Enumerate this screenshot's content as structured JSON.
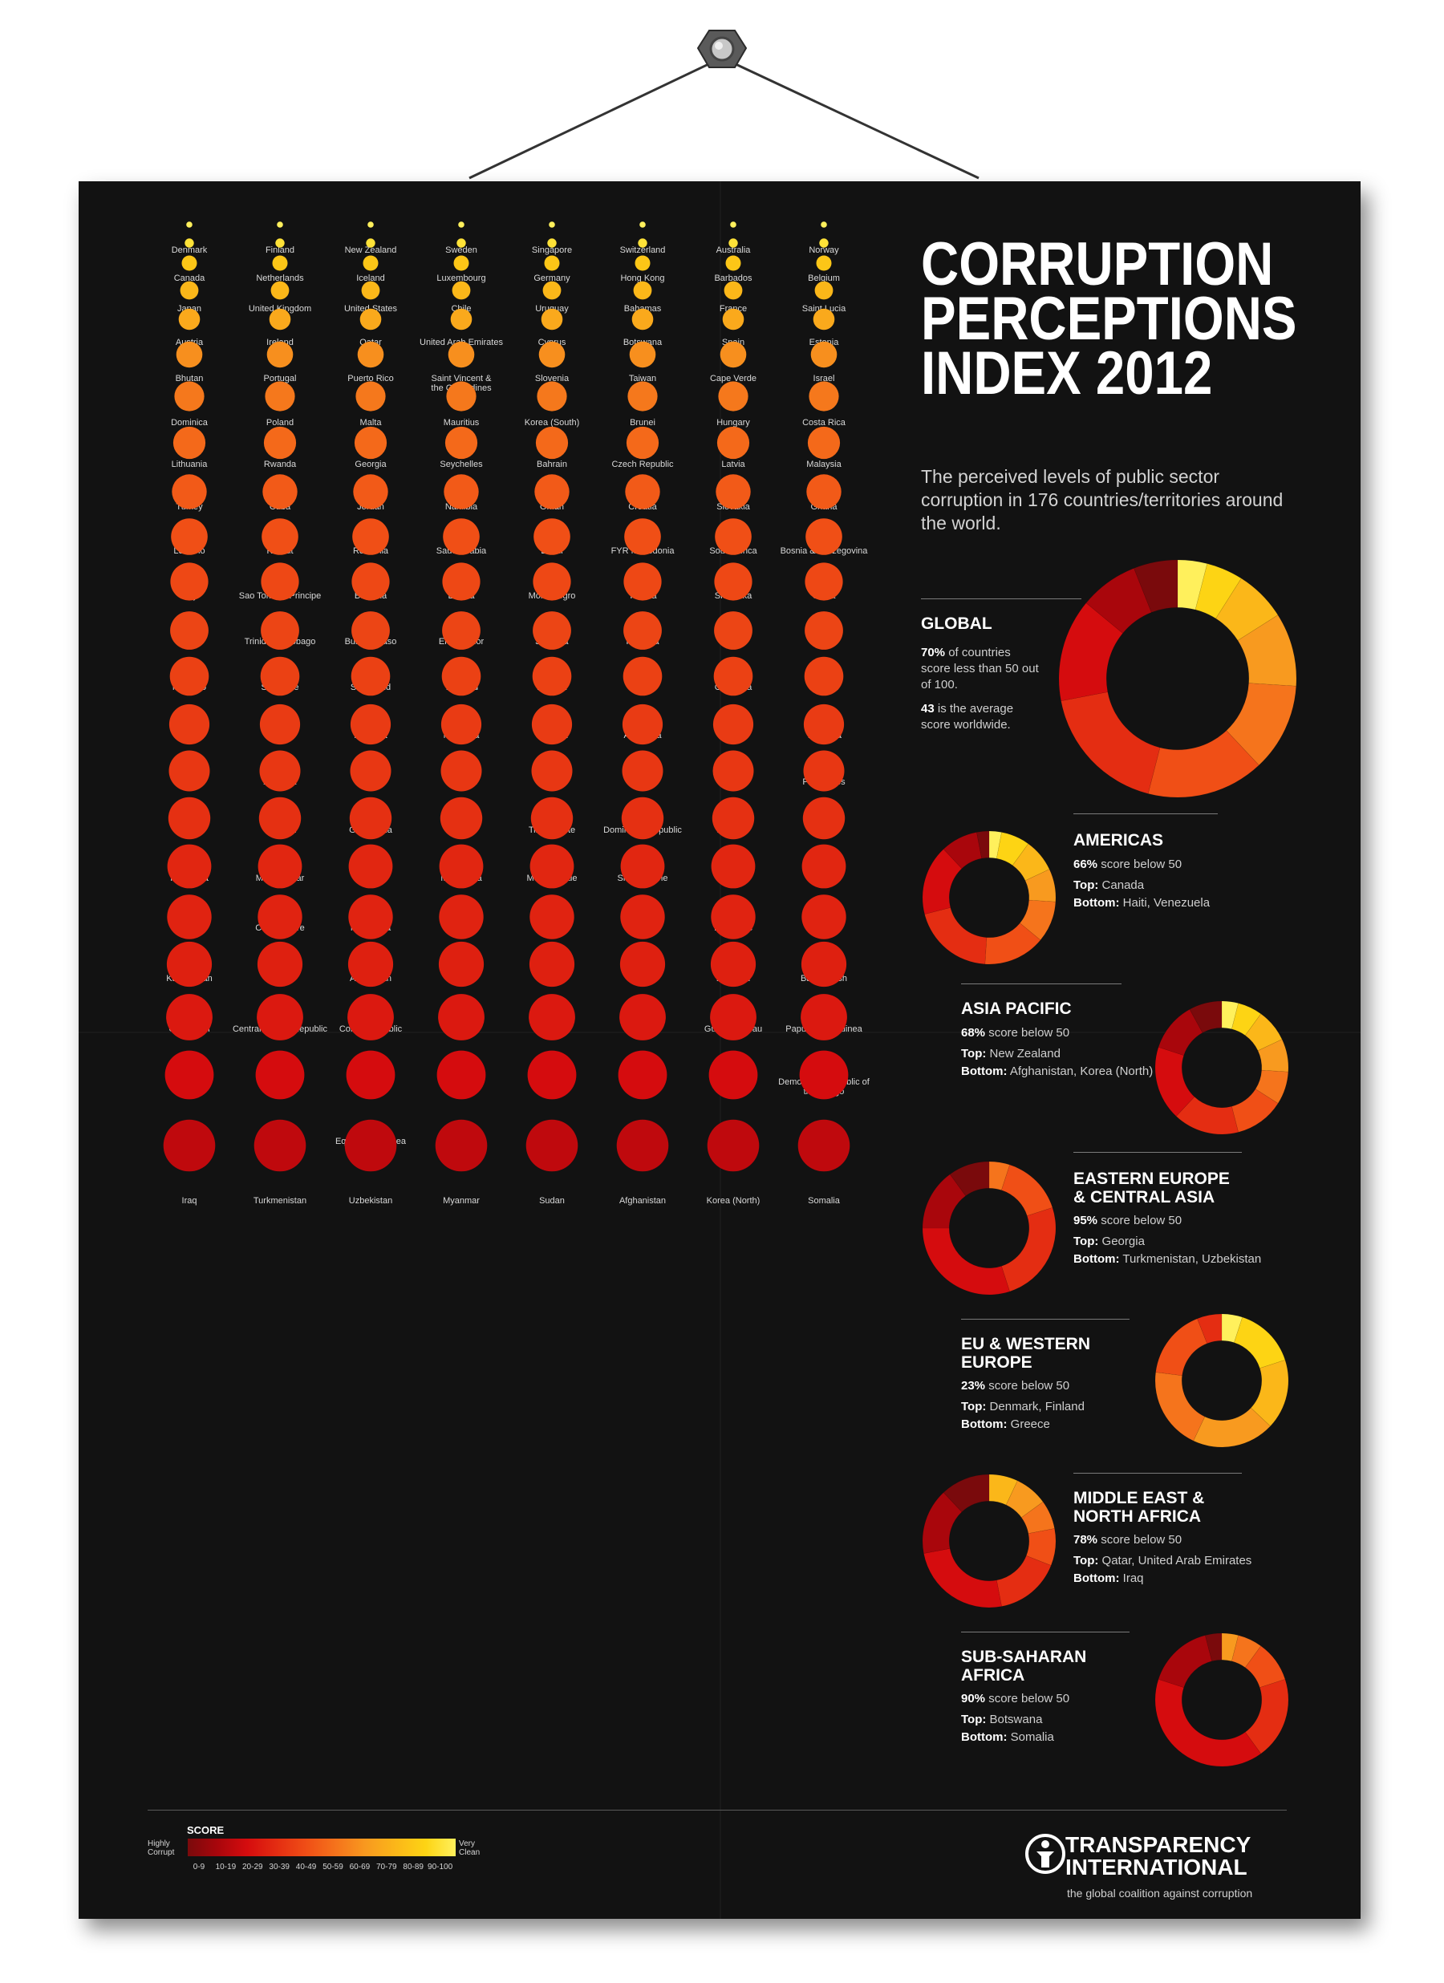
{
  "title_lines": [
    "CORRUPTION",
    "PERCEPTIONS",
    "INDEX 2012"
  ],
  "subtitle": "The perceived levels of public sector corruption in 176 countries/territories around the world.",
  "chart_data": {
    "type": "dot-grid",
    "title": "Corruption Perceptions Index 2012",
    "scale_title": "SCORE",
    "scale_low_label": "Highly Corrupt",
    "scale_high_label": "Very Clean",
    "scale_bins": [
      "0-9",
      "10-19",
      "20-29",
      "30-39",
      "40-49",
      "50-59",
      "60-69",
      "70-79",
      "80-89",
      "90-100"
    ],
    "scale_colors": [
      "#7a0a0c",
      "#a9060c",
      "#d50c0e",
      "#e42d12",
      "#f04f16",
      "#f5741c",
      "#f89a1f",
      "#fbb719",
      "#fdd414",
      "#fff05c"
    ],
    "rows": [
      {
        "score": 90,
        "countries": [
          "Denmark",
          "Finland",
          "New Zealand",
          "Sweden",
          "Singapore",
          "Switzerland",
          "Australia",
          "Norway"
        ]
      },
      {
        "score": 85,
        "countries": [
          "Canada",
          "Netherlands",
          "Iceland",
          "Luxembourg",
          "Germany",
          "Hong Kong",
          "Barbados",
          "Belgium"
        ]
      },
      {
        "score": 75,
        "countries": [
          "Japan",
          "United Kingdom",
          "United States",
          "Chile",
          "Uruguay",
          "Bahamas",
          "France",
          "Saint Lucia"
        ]
      },
      {
        "score": 70,
        "countries": [
          "Austria",
          "Ireland",
          "Qatar",
          "United Arab Emirates",
          "Cyprus",
          "Botswana",
          "Spain",
          "Estonia"
        ]
      },
      {
        "score": 65,
        "countries": [
          "Bhutan",
          "Portugal",
          "Puerto Rico",
          "Saint Vincent & the Grenadines",
          "Slovenia",
          "Taiwan",
          "Cape Verde",
          "Israel"
        ]
      },
      {
        "score": 57,
        "countries": [
          "Dominica",
          "Poland",
          "Malta",
          "Mauritius",
          "Korea (South)",
          "Brunei",
          "Hungary",
          "Costa Rica"
        ]
      },
      {
        "score": 51,
        "countries": [
          "Lithuania",
          "Rwanda",
          "Georgia",
          "Seychelles",
          "Bahrain",
          "Czech Republic",
          "Latvia",
          "Malaysia"
        ]
      },
      {
        "score": 47,
        "countries": [
          "Turkey",
          "Cuba",
          "Jordan",
          "Namibia",
          "Oman",
          "Croatia",
          "Slovakia",
          "Ghana"
        ]
      },
      {
        "score": 43,
        "countries": [
          "Lesotho",
          "Kuwait",
          "Romania",
          "Saudi Arabia",
          "Brazil",
          "FYR Macedonia",
          "South Africa",
          "Bosnia & Herzegovina"
        ]
      },
      {
        "score": 40,
        "countries": [
          "Italy",
          "Sao Tome & Principe",
          "Bulgaria",
          "Liberia",
          "Montenegro",
          "Tunisia",
          "Sri Lanka",
          "China"
        ]
      },
      {
        "score": 38,
        "countries": [
          "Serbia",
          "Trinidad & Tobago",
          "Burkina Faso",
          "El Salvador",
          "Jamaica",
          "Panama",
          "Peru",
          "Malawi"
        ]
      },
      {
        "score": 37,
        "countries": [
          "Morocco",
          "Suriname",
          "Swaziland",
          "Thailand",
          "Zambia",
          "Benin",
          "Colombia",
          "Djibouti"
        ]
      },
      {
        "score": 36,
        "countries": [
          "Greece",
          "India",
          "Moldova",
          "Mongolia",
          "Senegal",
          "Argentina",
          "Gabon",
          "Tanzania"
        ]
      },
      {
        "score": 34,
        "countries": [
          "Algeria",
          "Armenia",
          "Bolivia",
          "Gambia",
          "Kosovo",
          "Mali",
          "Mexico",
          "Philippines"
        ]
      },
      {
        "score": 33,
        "countries": [
          "Albania",
          "Ethiopia",
          "Guatemala",
          "Niger",
          "Timor-Leste",
          "Dominican Republic",
          "Ecuador",
          "Egypt"
        ]
      },
      {
        "score": 31,
        "countries": [
          "Indonesia",
          "Madagascar",
          "Belarus",
          "Mauritania",
          "Mozambique",
          "Sierra Leone",
          "Vietnam",
          "Lebanon"
        ]
      },
      {
        "score": 28,
        "countries": [
          "Togo",
          "Côte d'Ivoire",
          "Nicaragua",
          "Uganda",
          "Comoros",
          "Guyana",
          "Honduras",
          "Iran"
        ]
      },
      {
        "score": 27,
        "countries": [
          "Kazakhstan",
          "Russia",
          "Azerbaijan",
          "Kenya",
          "Nepal",
          "Nigeria",
          "Pakistan",
          "Bangladesh"
        ]
      },
      {
        "score": 26,
        "countries": [
          "Cameroon",
          "Central African Republic",
          "Congo Republic",
          "Syria",
          "Ukraine",
          "Eritrea",
          "Guinea-Bissau",
          "Papua New Guinea"
        ]
      },
      {
        "score": 24,
        "countries": [
          "Paraguay",
          "Guinea",
          "Kyrgyzstan",
          "Yemen",
          "Angola",
          "Cambodia",
          "Tajikistan",
          "Democratic Republic of the Congo"
        ]
      },
      {
        "score": 20,
        "countries": [
          "Laos",
          "Libya",
          "Equatorial Guinea",
          "Zimbabwe",
          "Burundi",
          "Chad",
          "Haiti",
          "Venezuela"
        ]
      },
      {
        "score": 15,
        "countries": [
          "Iraq",
          "Turkmenistan",
          "Uzbekistan",
          "Myanmar",
          "Sudan",
          "Afghanistan",
          "Korea (North)",
          "Somalia"
        ]
      }
    ],
    "regions": [
      {
        "name_lines": [
          "GLOBAL"
        ],
        "pct": "70%",
        "pct_text": "of countries score less than 50 out of 100.",
        "avg": "43",
        "avg_text": "is the average score worldwide.",
        "shares": [
          6,
          8,
          14,
          18,
          16,
          12,
          10,
          7,
          5,
          4
        ]
      },
      {
        "name_lines": [
          "AMERICAS"
        ],
        "pct": "66%",
        "pct_text": "score below 50",
        "top": "Canada",
        "bottom": "Haiti, Venezuela",
        "shares": [
          3,
          9,
          17,
          20,
          15,
          10,
          8,
          8,
          7,
          3
        ]
      },
      {
        "name_lines": [
          "ASIA PACIFIC"
        ],
        "pct": "68%",
        "pct_text": "score below 50",
        "top": "New Zealand",
        "bottom": "Afghanistan, Korea (North)",
        "shares": [
          8,
          12,
          18,
          16,
          12,
          8,
          8,
          8,
          6,
          4
        ]
      },
      {
        "name_lines": [
          "EASTERN EUROPE",
          "& CENTRAL ASIA"
        ],
        "pct": "95%",
        "pct_text": "score below 50",
        "top": "Georgia",
        "bottom": "Turkmenistan, Uzbekistan",
        "shares": [
          10,
          15,
          30,
          25,
          15,
          5,
          0,
          0,
          0,
          0
        ]
      },
      {
        "name_lines": [
          "EU & WESTERN",
          "EUROPE"
        ],
        "pct": "23%",
        "pct_text": "score below 50",
        "top": "Denmark, Finland",
        "bottom": "Greece",
        "shares": [
          0,
          0,
          0,
          6,
          17,
          20,
          20,
          17,
          15,
          5
        ]
      },
      {
        "name_lines": [
          "MIDDLE EAST &",
          "NORTH AFRICA"
        ],
        "pct": "78%",
        "pct_text": "score below 50",
        "top": "Qatar, United Arab Emirates",
        "bottom": "Iraq",
        "shares": [
          12,
          16,
          25,
          16,
          9,
          7,
          8,
          7,
          0,
          0
        ]
      },
      {
        "name_lines": [
          "SUB-SAHARAN",
          "AFRICA"
        ],
        "pct": "90%",
        "pct_text": "score below 50",
        "top": "Botswana",
        "bottom": "Somalia",
        "shares": [
          4,
          16,
          40,
          20,
          10,
          6,
          4,
          0,
          0,
          0
        ]
      }
    ]
  },
  "labels": {
    "top_prefix": "Top:",
    "bottom_prefix": "Bottom:"
  },
  "logo": {
    "name_lines": [
      "TRANSPARENCY",
      "INTERNATIONAL"
    ],
    "tagline": "the global coalition against corruption"
  }
}
